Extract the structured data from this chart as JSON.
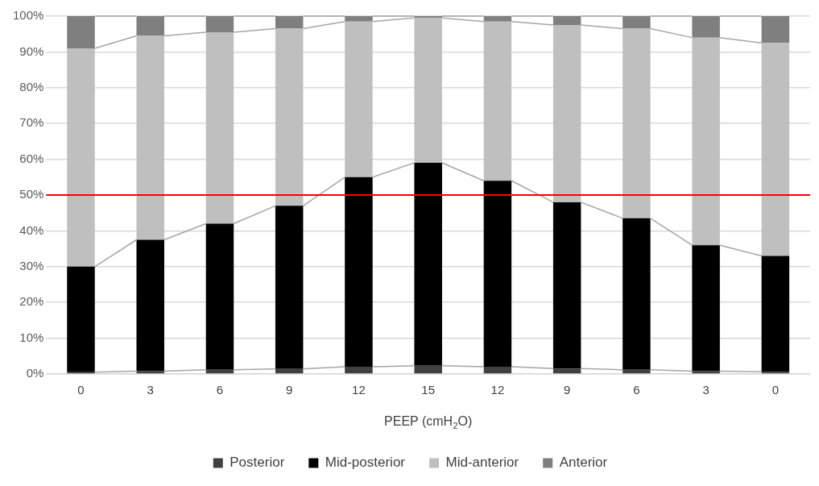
{
  "chart_data": {
    "type": "bar",
    "stacked": true,
    "xlabel": "PEEP (cmH$_{2}$O)",
    "categories": [
      "0",
      "3",
      "6",
      "9",
      "12",
      "15",
      "12",
      "9",
      "6",
      "3",
      "0"
    ],
    "series": [
      {
        "name": "Posterior",
        "color": "#404040",
        "values": [
          0.5,
          0.8,
          1.2,
          1.4,
          2.0,
          2.3,
          2.0,
          1.5,
          1.2,
          0.8,
          0.6
        ]
      },
      {
        "name": "Mid-posterior",
        "color": "#000000",
        "values": [
          29.5,
          36.7,
          40.8,
          45.6,
          53.0,
          56.7,
          52.0,
          46.5,
          42.3,
          35.2,
          32.4
        ]
      },
      {
        "name": "Mid-anterior",
        "color": "#bfbfbf",
        "values": [
          61.0,
          57.0,
          53.5,
          49.5,
          43.5,
          40.5,
          44.5,
          49.5,
          53.0,
          58.0,
          59.5
        ]
      },
      {
        "name": "Anterior",
        "color": "#7f7f7f",
        "values": [
          9.0,
          5.5,
          4.5,
          3.5,
          1.5,
          0.5,
          1.5,
          2.5,
          3.5,
          6.0,
          7.5
        ]
      }
    ],
    "ylim": [
      0,
      100
    ],
    "yticks": [
      {
        "value": 0,
        "label": "0%"
      },
      {
        "value": 10,
        "label": "10%"
      },
      {
        "value": 20,
        "label": "20%"
      },
      {
        "value": 30,
        "label": "30%"
      },
      {
        "value": 40,
        "label": "40%"
      },
      {
        "value": 50,
        "label": "50%"
      },
      {
        "value": 60,
        "label": "60%"
      },
      {
        "value": 70,
        "label": "70%"
      },
      {
        "value": 80,
        "label": "80%"
      },
      {
        "value": 90,
        "label": "90%"
      },
      {
        "value": 100,
        "label": "100%"
      }
    ],
    "ref_lines": [
      {
        "axis": "y",
        "value": 50,
        "color": "#ff0000"
      }
    ],
    "grid": "y",
    "legend": "bottom"
  }
}
